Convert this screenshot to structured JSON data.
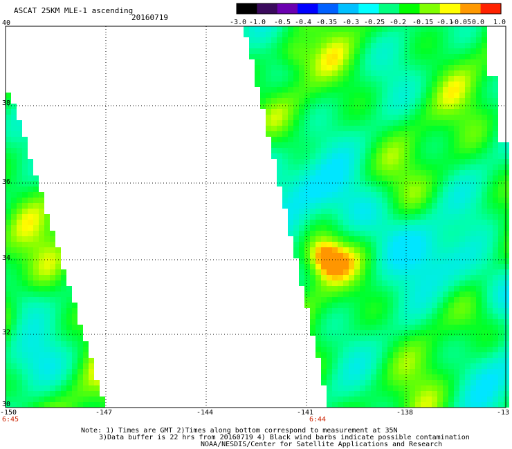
{
  "title": "ASCAT 25KM MLE-1 ascending",
  "date": "20160719",
  "colorbar": {
    "labels": [
      "-3.0",
      "-1.0",
      "-0.5",
      "-0.4",
      "-0.35",
      "-0.3",
      "-0.25",
      "-0.2",
      "-0.15",
      "-0.1",
      "-0.05",
      "0.0",
      "1.0"
    ],
    "colors": [
      "#000000",
      "#3a0a5c",
      "#6a00b0",
      "#0000ff",
      "#0060ff",
      "#00c0ff",
      "#00ffff",
      "#00ff80",
      "#00ff00",
      "#80ff00",
      "#ffff00",
      "#ff9900",
      "#ff2200"
    ]
  },
  "lat_labels": [
    "40",
    "38",
    "36",
    "34",
    "32",
    "30"
  ],
  "lon_labels": [
    "-150",
    "-147",
    "-144",
    "-141",
    "-138",
    "-13"
  ],
  "time_labels": [
    "6:45",
    "6:44"
  ],
  "notes": {
    "line1": "Note: 1) Times are GMT 2)Times along bottom correspond to measurement at 35N",
    "line2": "3)Data buffer is 22 hrs from 20160719 4) Black wind barbs indicate possible contamination",
    "line3": "NOAA/NESDIS/Center for Satellite Applications and Research"
  }
}
